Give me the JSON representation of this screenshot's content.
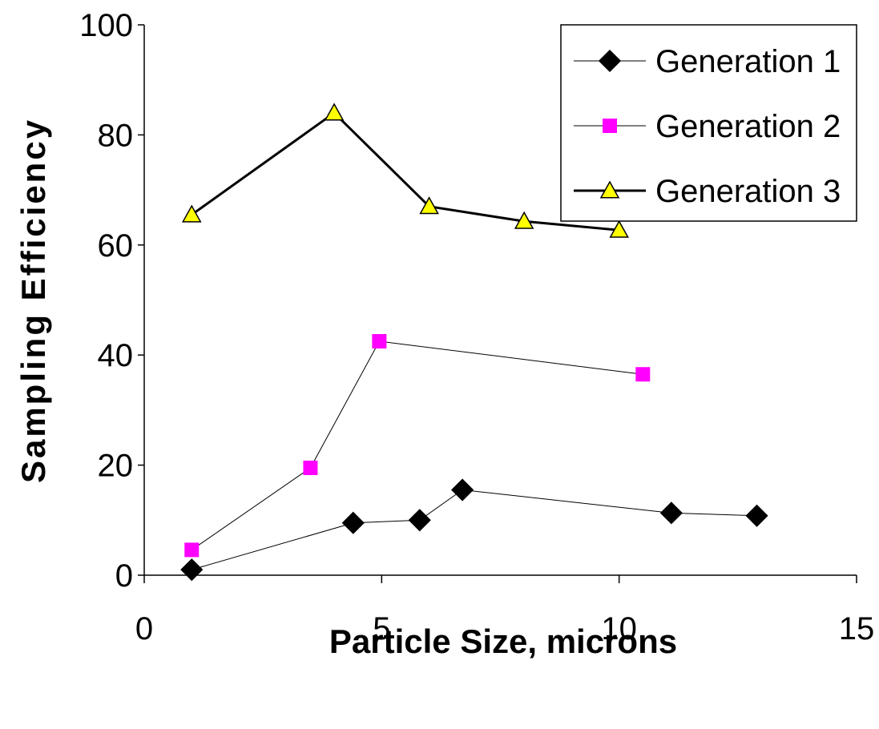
{
  "chart_data": {
    "type": "scatter",
    "title": "",
    "xlabel": "Particle Size, microns",
    "ylabel": "Sampling Efficiency",
    "xlim": [
      0,
      15
    ],
    "ylim": [
      0,
      100
    ],
    "xticks": [
      0,
      5,
      10,
      15
    ],
    "yticks": [
      0,
      20,
      40,
      60,
      80,
      100
    ],
    "grid": false,
    "legend_position": "top-right",
    "series": [
      {
        "name": "Generation 1",
        "marker": "diamond",
        "color": "#000000",
        "line_color": "#000000",
        "line": "thin",
        "x": [
          1.0,
          4.4,
          5.8,
          6.7,
          11.1,
          12.9
        ],
        "y": [
          1.0,
          9.5,
          10.0,
          15.5,
          11.3,
          10.8
        ]
      },
      {
        "name": "Generation 2",
        "marker": "square",
        "color": "#ff00ff",
        "line_color": "#000000",
        "line": "thin",
        "x": [
          1.0,
          3.5,
          4.95,
          10.5
        ],
        "y": [
          4.6,
          19.5,
          42.5,
          36.5
        ]
      },
      {
        "name": "Generation 3",
        "marker": "triangle",
        "color": "#ffff00",
        "line_color": "#000000",
        "line": "thick",
        "x": [
          1.0,
          4.0,
          6.0,
          8.0,
          10.0
        ],
        "y": [
          65.5,
          84.0,
          67.0,
          64.3,
          62.7
        ]
      }
    ]
  }
}
